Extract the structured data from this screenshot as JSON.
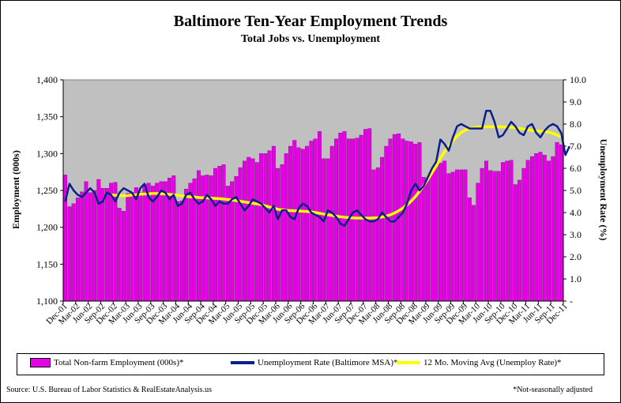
{
  "title": "Baltimore Ten-Year Employment Trends",
  "subtitle": "Total Jobs vs. Unemployment",
  "source": "Source: U.S. Bureau of Labor Statistics & RealEstateAnalysis.us",
  "note": "*Not-seasonally adjusted",
  "colors": {
    "bars": "#e600e6",
    "unemployment": "#0a1e8c",
    "moving_avg": "#ffff00",
    "plot_bg": "#c0c0c0"
  },
  "chart_data": {
    "type": "bar",
    "title": "Baltimore Ten-Year Employment Trends",
    "subtitle": "Total Jobs vs. Unemployment",
    "ylabel": "Employment (000s)",
    "y2label": "Unemployment Rate (%)",
    "ylim": [
      1100,
      1400
    ],
    "y2lim": [
      0,
      10
    ],
    "yticks": [
      "1,100",
      "1,150",
      "1,200",
      "1,250",
      "1,300",
      "1,350",
      "1,400"
    ],
    "y2ticks": [
      "-",
      "1.0",
      "2.0",
      "3.0",
      "4.0",
      "5.0",
      "6.0",
      "7.0",
      "8.0",
      "9.0",
      "10.0"
    ],
    "x_tick_labels": [
      "Dec-01",
      "Mar-02",
      "Jun-02",
      "Sep-02",
      "Dec-02",
      "Mar-03",
      "Jun-03",
      "Sep-03",
      "Dec-03",
      "Mar-04",
      "Jun-04",
      "Sep-04",
      "Dec-04",
      "Mar-05",
      "Jun-05",
      "Sep-05",
      "Dec-05",
      "Mar-06",
      "Jun-06",
      "Sep-06",
      "Dec-06",
      "Mar-07",
      "Jun-07",
      "Sep-07",
      "Dec-07",
      "Mar-08",
      "Jun-08",
      "Sep-08",
      "Dec-08",
      "Mar-09",
      "Jun-09",
      "Sep-09",
      "Dec-09",
      "Mar-10",
      "Jun-10",
      "Sep-10",
      "Dec-10",
      "Mar-11",
      "Jun-11",
      "Sep-11",
      "Dec-11"
    ],
    "grid": false,
    "legend_position": "bottom",
    "series": [
      {
        "name": "Total Non-farm Employment (000s)*",
        "type": "bar",
        "axis": "left",
        "values": [
          1271,
          1228,
          1232,
          1240,
          1248,
          1262,
          1247,
          1250,
          1265,
          1253,
          1253,
          1260,
          1261,
          1226,
          1222,
          1246,
          1247,
          1254,
          1247,
          1258,
          1260,
          1256,
          1260,
          1262,
          1262,
          1267,
          1270,
          1235,
          1236,
          1252,
          1260,
          1266,
          1277,
          1270,
          1271,
          1270,
          1280,
          1283,
          1285,
          1256,
          1262,
          1269,
          1281,
          1290,
          1295,
          1293,
          1288,
          1300,
          1300,
          1304,
          1310,
          1280,
          1285,
          1300,
          1310,
          1318,
          1308,
          1306,
          1310,
          1317,
          1320,
          1330,
          1293,
          1293,
          1310,
          1320,
          1328,
          1330,
          1320,
          1320,
          1321,
          1325,
          1333,
          1334,
          1278,
          1281,
          1295,
          1310,
          1320,
          1326,
          1327,
          1320,
          1317,
          1316,
          1313,
          1315,
          1268,
          1266,
          1278,
          1283,
          1287,
          1290,
          1273,
          1275,
          1278,
          1278,
          1278,
          1240,
          1230,
          1260,
          1280,
          1290,
          1277,
          1276,
          1276,
          1288,
          1290,
          1291,
          1258,
          1264,
          1280,
          1291,
          1296,
          1300,
          1302,
          1298,
          1290,
          1296,
          1315,
          1312
        ]
      },
      {
        "name": "Unemployment Rate (Baltimore MSA)*",
        "type": "line",
        "axis": "right",
        "values": [
          4.5,
          5.3,
          5.0,
          4.8,
          4.7,
          4.9,
          5.1,
          4.9,
          4.4,
          4.5,
          4.9,
          4.8,
          4.5,
          4.9,
          5.1,
          5.0,
          4.9,
          4.6,
          5.1,
          5.3,
          4.7,
          4.5,
          4.7,
          5.0,
          4.9,
          4.6,
          4.8,
          4.3,
          4.4,
          4.8,
          4.9,
          4.6,
          4.4,
          4.5,
          4.8,
          4.6,
          4.3,
          4.5,
          4.4,
          4.4,
          4.6,
          4.7,
          4.4,
          4.1,
          4.3,
          4.6,
          4.5,
          4.4,
          4.2,
          4.0,
          4.3,
          3.7,
          4.1,
          4.1,
          3.8,
          3.7,
          4.2,
          4.4,
          4.3,
          4.0,
          3.9,
          3.8,
          3.6,
          4.1,
          4.0,
          3.8,
          3.5,
          3.4,
          3.7,
          4.0,
          4.1,
          3.9,
          3.7,
          3.6,
          3.6,
          3.7,
          4.0,
          3.8,
          3.6,
          3.6,
          3.8,
          4.0,
          4.4,
          5.0,
          5.3,
          5.0,
          5.2,
          5.6,
          6.0,
          6.3,
          7.3,
          7.1,
          6.8,
          7.4,
          7.9,
          8.0,
          7.9,
          7.8,
          7.8,
          7.8,
          7.8,
          8.6,
          8.6,
          8.1,
          7.4,
          7.5,
          7.8,
          8.1,
          7.9,
          7.6,
          7.5,
          7.9,
          8.0,
          7.6,
          7.4,
          7.7,
          7.9,
          8.0,
          7.9,
          7.6,
          6.6,
          7.0
        ]
      },
      {
        "name": "12 Mo. Moving Avg (Unemploy Rate)*",
        "type": "line",
        "axis": "right",
        "values": [
          null,
          null,
          null,
          null,
          null,
          null,
          null,
          null,
          null,
          null,
          null,
          4.8,
          4.78,
          4.77,
          4.76,
          4.77,
          4.79,
          4.81,
          4.83,
          4.84,
          4.85,
          4.86,
          4.86,
          4.85,
          4.84,
          4.82,
          4.8,
          4.78,
          4.75,
          4.73,
          4.71,
          4.7,
          4.68,
          4.67,
          4.66,
          4.65,
          4.64,
          4.63,
          4.61,
          4.59,
          4.57,
          4.54,
          4.51,
          4.48,
          4.45,
          4.42,
          4.39,
          4.36,
          4.3,
          4.25,
          4.2,
          4.15,
          4.12,
          4.1,
          4.09,
          4.08,
          4.07,
          4.06,
          4.05,
          4.03,
          4.0,
          3.97,
          3.93,
          3.9,
          3.87,
          3.84,
          3.81,
          3.79,
          3.77,
          3.76,
          3.75,
          3.75,
          3.75,
          3.75,
          3.76,
          3.77,
          3.8,
          3.84,
          3.9,
          3.98,
          4.08,
          4.2,
          4.35,
          4.52,
          4.72,
          4.96,
          5.22,
          5.5,
          5.8,
          6.1,
          6.45,
          6.75,
          7.0,
          7.25,
          7.45,
          7.62,
          7.73,
          7.8,
          7.84,
          7.86,
          7.87,
          7.88,
          7.88,
          7.88,
          7.88,
          7.87,
          7.86,
          7.85,
          7.83,
          7.8,
          7.77,
          7.74,
          7.71,
          7.69,
          7.68,
          7.66,
          7.63,
          7.58,
          7.5,
          7.42
        ]
      }
    ]
  }
}
